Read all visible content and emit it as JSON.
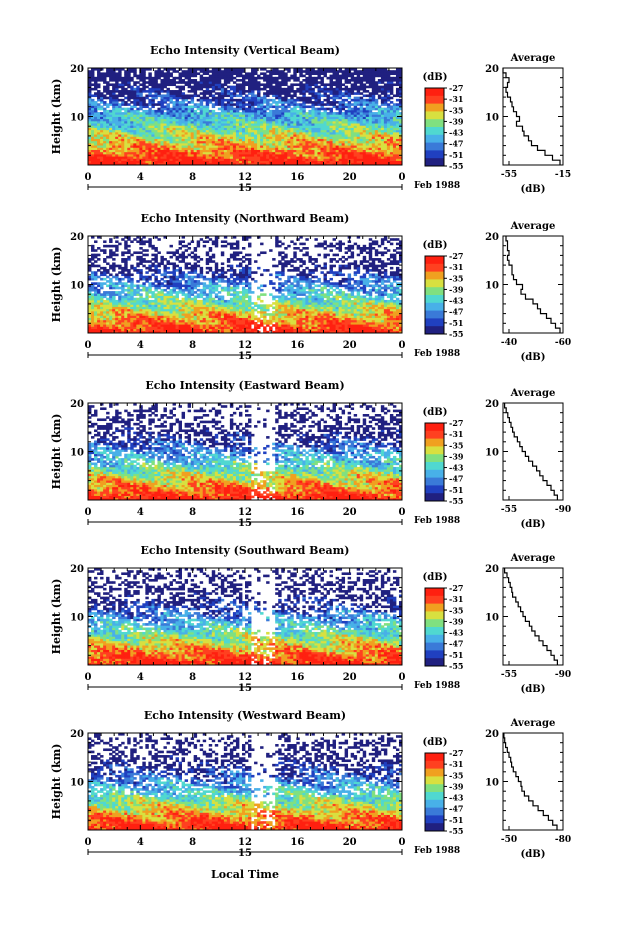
{
  "figure": {
    "bottom_xlabel": "Local Time",
    "colors": [
      "#202080",
      "#2040c0",
      "#3a7ad8",
      "#48b0e8",
      "#50d8d0",
      "#80e080",
      "#d8e040",
      "#f0a020",
      "#ff4020",
      "#ff2010"
    ]
  },
  "chart_data": [
    {
      "type": "heatmap",
      "title": "Echo Intensity (Vertical Beam)",
      "ylabel": "Height (km)",
      "yticks": [
        10,
        20
      ],
      "ylim": [
        0,
        20
      ],
      "xticks": [
        "0",
        "4",
        "8",
        "12",
        "16",
        "20",
        "0"
      ],
      "xlim": [
        0,
        24
      ],
      "date_marker": "15",
      "date_label": "Feb 1988",
      "colorbar": {
        "title": "(dB)",
        "labels": [
          "-27",
          "-31",
          "-35",
          "-39",
          "-43",
          "-47",
          "-51",
          "-55"
        ],
        "range": [
          -55,
          -27
        ]
      },
      "average": {
        "title": "Average",
        "xlabel": "(dB)",
        "xtick_labels": [
          "-55",
          "-15"
        ],
        "xlim": [
          -55,
          -15
        ],
        "yticks": [
          10,
          20
        ],
        "heights": [
          1,
          2,
          3,
          4,
          5,
          6,
          7,
          8,
          9,
          10,
          11,
          12,
          13,
          14,
          15,
          16,
          17,
          18,
          19,
          20
        ],
        "values": [
          -17,
          -22,
          -27,
          -32,
          -36,
          -38,
          -41,
          -42,
          -46,
          -44,
          -46,
          -48,
          -49,
          -50,
          -52,
          -53,
          -52,
          -51,
          -53,
          -55
        ]
      }
    },
    {
      "type": "heatmap",
      "title": "Echo Intensity (Northward Beam)",
      "ylabel": "Height (km)",
      "yticks": [
        10,
        20
      ],
      "ylim": [
        0,
        20
      ],
      "xticks": [
        "0",
        "4",
        "8",
        "12",
        "16",
        "20",
        "0"
      ],
      "xlim": [
        0,
        24
      ],
      "date_marker": "15",
      "date_label": "Feb 1988",
      "colorbar": {
        "title": "(dB)",
        "labels": [
          "-27",
          "-31",
          "-35",
          "-39",
          "-43",
          "-47",
          "-51",
          "-55"
        ],
        "range": [
          -55,
          -27
        ]
      },
      "average": {
        "title": "Average",
        "xlabel": "(dB)",
        "xtick_labels": [
          "-40",
          "-60"
        ],
        "xlim": [
          -60,
          -20
        ],
        "yticks": [
          10,
          20
        ],
        "heights": [
          1,
          2,
          3,
          4,
          5,
          6,
          7,
          8,
          9,
          10,
          11,
          12,
          13,
          14,
          15,
          16,
          17,
          18,
          19,
          20
        ],
        "values": [
          -22,
          -25,
          -28,
          -31,
          -35,
          -37,
          -40,
          -45,
          -48,
          -47,
          -51,
          -53,
          -54,
          -54,
          -56,
          -57,
          -56,
          -57,
          -57,
          -58
        ]
      }
    },
    {
      "type": "heatmap",
      "title": "Echo Intensity (Eastward Beam)",
      "ylabel": "Height (km)",
      "yticks": [
        10,
        20
      ],
      "ylim": [
        0,
        20
      ],
      "xticks": [
        "0",
        "4",
        "8",
        "12",
        "16",
        "20",
        "0"
      ],
      "xlim": [
        0,
        24
      ],
      "date_marker": "15",
      "date_label": "Feb 1988",
      "colorbar": {
        "title": "(dB)",
        "labels": [
          "-27",
          "-31",
          "-35",
          "-39",
          "-43",
          "-47",
          "-51",
          "-55"
        ],
        "range": [
          -55,
          -27
        ]
      },
      "average": {
        "title": "Average",
        "xlabel": "(dB)",
        "xtick_labels": [
          "-55",
          "-90"
        ],
        "xlim": [
          -90,
          -15
        ],
        "yticks": [
          10,
          20
        ],
        "heights": [
          1,
          2,
          3,
          4,
          5,
          6,
          7,
          8,
          9,
          10,
          11,
          12,
          13,
          14,
          15,
          16,
          17,
          18,
          19,
          20
        ],
        "values": [
          -22,
          -26,
          -30,
          -35,
          -40,
          -44,
          -48,
          -53,
          -58,
          -62,
          -66,
          -69,
          -72,
          -76,
          -78,
          -80,
          -82,
          -84,
          -86,
          -88
        ]
      }
    },
    {
      "type": "heatmap",
      "title": "Echo Intensity (Southward Beam)",
      "ylabel": "Height (km)",
      "yticks": [
        10,
        20
      ],
      "ylim": [
        0,
        20
      ],
      "xticks": [
        "0",
        "4",
        "8",
        "12",
        "16",
        "20",
        "0"
      ],
      "xlim": [
        0,
        24
      ],
      "date_marker": "15",
      "date_label": "Feb 1988",
      "colorbar": {
        "title": "(dB)",
        "labels": [
          "-27",
          "-31",
          "-35",
          "-39",
          "-43",
          "-47",
          "-51",
          "-55"
        ],
        "range": [
          -55,
          -27
        ]
      },
      "average": {
        "title": "Average",
        "xlabel": "(dB)",
        "xtick_labels": [
          "-55",
          "-90"
        ],
        "xlim": [
          -90,
          -15
        ],
        "yticks": [
          10,
          20
        ],
        "heights": [
          1,
          2,
          3,
          4,
          5,
          6,
          7,
          8,
          9,
          10,
          11,
          12,
          13,
          14,
          15,
          16,
          17,
          18,
          19,
          20
        ],
        "values": [
          -22,
          -26,
          -30,
          -35,
          -40,
          -45,
          -50,
          -54,
          -57,
          -62,
          -65,
          -68,
          -71,
          -74,
          -78,
          -79,
          -81,
          -83,
          -85,
          -88
        ]
      }
    },
    {
      "type": "heatmap",
      "title": "Echo Intensity (Westward Beam)",
      "ylabel": "Height (km)",
      "yticks": [
        10,
        20
      ],
      "ylim": [
        0,
        20
      ],
      "xticks": [
        "0",
        "4",
        "8",
        "12",
        "16",
        "20",
        "0"
      ],
      "xlim": [
        0,
        24
      ],
      "date_marker": "15",
      "date_label": "Feb 1988",
      "colorbar": {
        "title": "(dB)",
        "labels": [
          "-27",
          "-31",
          "-35",
          "-39",
          "-43",
          "-47",
          "-51",
          "-55"
        ],
        "range": [
          -55,
          -27
        ]
      },
      "average": {
        "title": "Average",
        "xlabel": "(dB)",
        "xtick_labels": [
          "-50",
          "-80"
        ],
        "xlim": [
          -85,
          -15
        ],
        "yticks": [
          10,
          20
        ],
        "heights": [
          1,
          2,
          3,
          4,
          5,
          6,
          7,
          8,
          9,
          10,
          11,
          12,
          13,
          14,
          15,
          16,
          17,
          18,
          19,
          20
        ],
        "values": [
          -22,
          -27,
          -32,
          -38,
          -44,
          -50,
          -55,
          -60,
          -63,
          -64,
          -67,
          -70,
          -73,
          -75,
          -76,
          -78,
          -80,
          -82,
          -83,
          -84
        ]
      }
    }
  ]
}
